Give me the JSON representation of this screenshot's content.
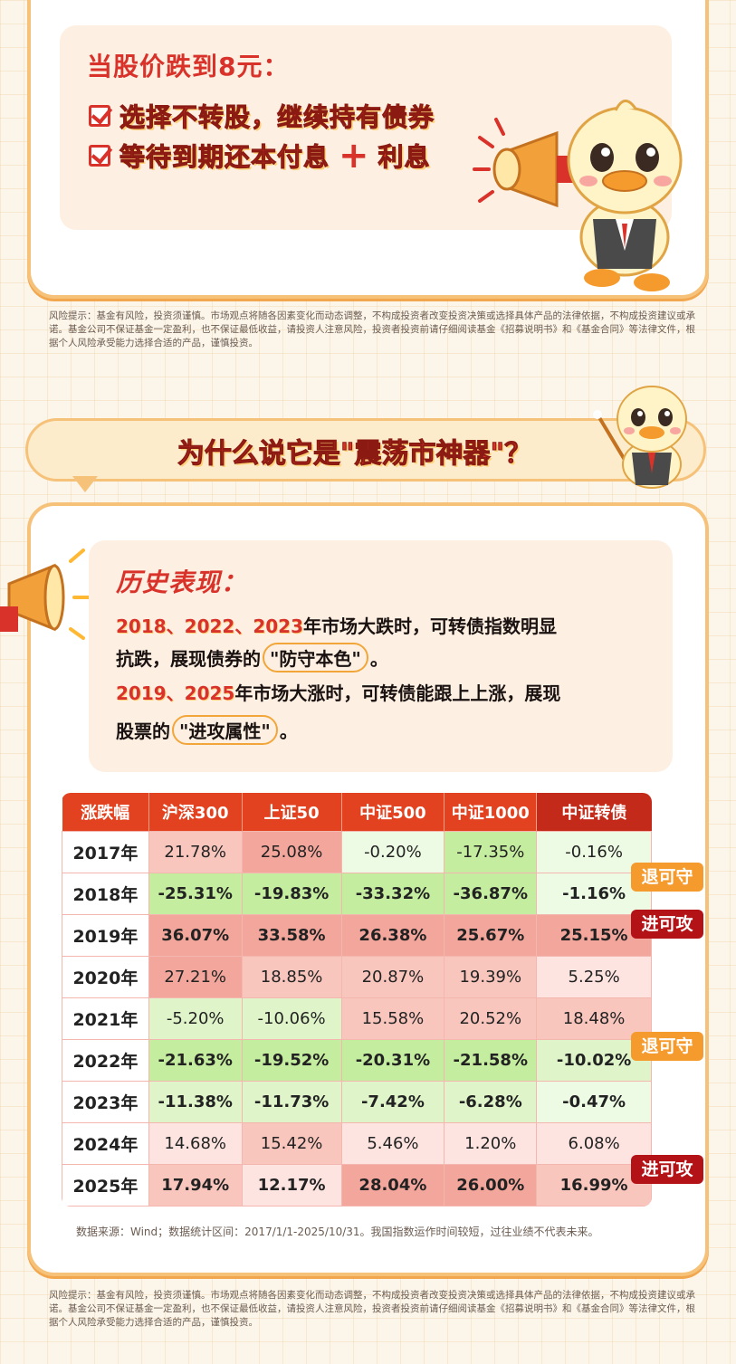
{
  "top_section": {
    "heading": "当股价跌到8元：",
    "items": [
      {
        "text": "选择不转股，继续持有债券"
      },
      {
        "text_before": "等待到期还本付息",
        "plus": "+",
        "text_after": "利息"
      }
    ]
  },
  "risk_note": "风险提示：基金有风险，投资须谨慎。市场观点将随各因素变化而动态调整，不构成投资者改变投资决策或选择具体产品的法律依据，不构成投资建议或承诺。基金公司不保证基金一定盈利，也不保证最低收益，请投资人注意风险，投资者投资前请仔细阅读基金《招募说明书》和《基金合同》等法律文件，根据个人风险承受能力选择合适的产品，谨慎投资。",
  "question": "为什么说它是\"震荡市神器\"？",
  "history": {
    "heading": "历史表现：",
    "p1_years": "2018、2022、2023",
    "p1_line1": "年市场大跌时，可转债指数明显",
    "p1_line2_a": "抗跌，展现债券的",
    "p1_circled": "\"防守本色\"",
    "p1_end": "。",
    "p2_years": "2019、2025",
    "p2_line1": "年市场大涨时，可转债能跟上上涨，展现",
    "p2_line2_a": "股票的",
    "p2_circled": "\"进攻属性\"",
    "p2_end": "。"
  },
  "table": {
    "headers": [
      "涨跌幅",
      "沪深300",
      "上证50",
      "中证500",
      "中证1000",
      "中证转债"
    ],
    "rows": [
      {
        "year": "2017年",
        "values": [
          "21.78%",
          "25.08%",
          "-0.20%",
          "-17.35%",
          "-0.16%"
        ]
      },
      {
        "year": "2018年",
        "values": [
          "-25.31%",
          "-19.83%",
          "-33.32%",
          "-36.87%",
          "-1.16%"
        ]
      },
      {
        "year": "2019年",
        "values": [
          "36.07%",
          "33.58%",
          "26.38%",
          "25.67%",
          "25.15%"
        ]
      },
      {
        "year": "2020年",
        "values": [
          "27.21%",
          "18.85%",
          "20.87%",
          "19.39%",
          "5.25%"
        ]
      },
      {
        "year": "2021年",
        "values": [
          "-5.20%",
          "-10.06%",
          "15.58%",
          "20.52%",
          "18.48%"
        ]
      },
      {
        "year": "2022年",
        "values": [
          "-21.63%",
          "-19.52%",
          "-20.31%",
          "-21.58%",
          "-10.02%"
        ]
      },
      {
        "year": "2023年",
        "values": [
          "-11.38%",
          "-11.73%",
          "-7.42%",
          "-6.28%",
          "-0.47%"
        ]
      },
      {
        "year": "2024年",
        "values": [
          "14.68%",
          "15.42%",
          "5.46%",
          "1.20%",
          "6.08%"
        ]
      },
      {
        "year": "2025年",
        "values": [
          "17.94%",
          "12.17%",
          "28.04%",
          "26.00%",
          "16.99%"
        ]
      }
    ],
    "bold_rows": [
      "2018年",
      "2019年",
      "2022年",
      "2023年",
      "2025年"
    ]
  },
  "tags": {
    "defend": "退可守",
    "attack": "进可攻"
  },
  "source_note": "数据来源：Wind；数据统计区间：2017/1/1-2025/10/31。我国指数运作时间较短，过往业绩不代表未来。",
  "colors": {
    "accent_red": "#d8322a",
    "header_orange": "#e2421f",
    "tag_orange": "#f59a2c",
    "tag_red": "#b31216"
  }
}
